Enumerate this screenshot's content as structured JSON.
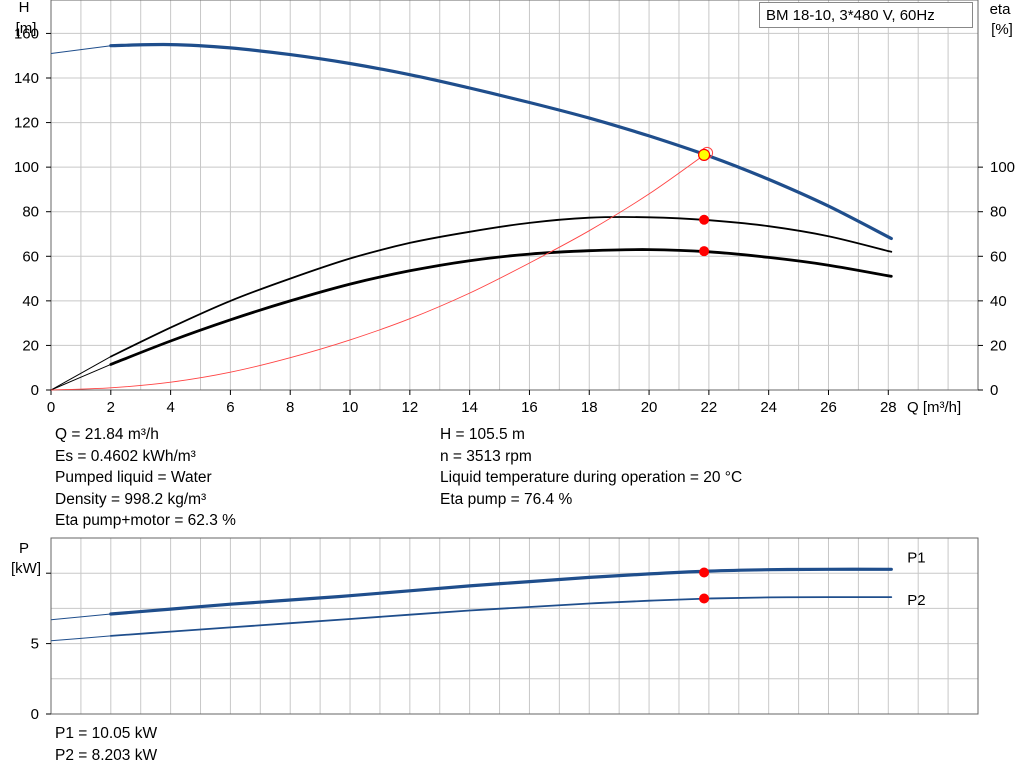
{
  "legend_title": "BM  18-10, 3*480 V, 60Hz",
  "colors": {
    "head": "#1f4e8c",
    "eff": "#000000",
    "es": "#ff4444",
    "point": "#ff0000",
    "dutyfill": "#ffff00",
    "grid": "#c8c8c8"
  },
  "chart_data": [
    {
      "type": "line",
      "title": "BM  18-10, 3*480 V, 60Hz",
      "xlabel": "Q [m³/h]",
      "ylabel_left_symbol": "H",
      "ylabel_left_unit": "[m]",
      "ylabel_right_symbol": "eta",
      "ylabel_right_unit": "[%]",
      "xlim": [
        0,
        31
      ],
      "ylim_left": [
        0,
        175
      ],
      "xticks": [
        "0",
        "2",
        "4",
        "6",
        "8",
        "10",
        "12",
        "14",
        "16",
        "18",
        "20",
        "22",
        "24",
        "26",
        "28"
      ],
      "yticks_left": [
        "0",
        "20",
        "40",
        "60",
        "80",
        "100",
        "120",
        "140",
        "160"
      ],
      "yticks_right": [
        "0",
        "20",
        "40",
        "60",
        "80",
        "100"
      ],
      "grid": true,
      "series": [
        {
          "key": "H",
          "x": [
            0,
            2,
            4,
            6,
            8,
            10,
            12,
            14,
            16,
            18,
            20,
            22,
            24,
            26,
            28.1
          ],
          "y": [
            151,
            154.5,
            155,
            153.5,
            150.5,
            146.5,
            141.5,
            135.5,
            129,
            122,
            114,
            105,
            94.5,
            82.5,
            68
          ]
        },
        {
          "key": "eta_pump",
          "x": [
            0,
            2,
            4,
            6,
            8,
            10,
            12,
            14,
            16,
            18,
            20,
            22,
            24,
            26,
            28.1
          ],
          "y": [
            0,
            15,
            28,
            40,
            50,
            59,
            66,
            71,
            75,
            77.3,
            77.5,
            76.2,
            73.5,
            69,
            62
          ]
        },
        {
          "key": "eta_total",
          "x": [
            0,
            2,
            4,
            6,
            8,
            10,
            12,
            14,
            16,
            18,
            20,
            22,
            24,
            26,
            28.1
          ],
          "y": [
            0,
            11.5,
            22,
            31.5,
            40,
            47.5,
            53.5,
            58,
            61,
            62.5,
            63,
            62,
            59.5,
            56,
            51
          ]
        },
        {
          "key": "Es",
          "x": [
            0,
            2,
            4,
            6,
            8,
            10,
            12,
            14,
            16,
            18,
            20,
            22
          ],
          "y": [
            0,
            1,
            3.5,
            8,
            14.5,
            22.5,
            32,
            43.5,
            57,
            71.5,
            88,
            107
          ]
        }
      ],
      "duty_point": {
        "Q": 21.84,
        "H": 105.5,
        "eta_pump": 76.4,
        "eta_total": 62.3
      }
    },
    {
      "type": "line",
      "ylabel_symbol": "P",
      "ylabel_unit": "[kW]",
      "xlim": [
        0,
        31
      ],
      "ylim": [
        0,
        12.5
      ],
      "yticks": [
        "0",
        "5"
      ],
      "grid": true,
      "series": [
        {
          "name": "P1",
          "x": [
            0,
            2,
            4,
            6,
            8,
            10,
            12,
            14,
            16,
            18,
            20,
            22,
            24,
            26,
            28.1
          ],
          "y": [
            6.7,
            7.1,
            7.45,
            7.8,
            8.1,
            8.4,
            8.75,
            9.1,
            9.4,
            9.7,
            9.95,
            10.15,
            10.25,
            10.28,
            10.28
          ]
        },
        {
          "name": "P2",
          "x": [
            0,
            2,
            4,
            6,
            8,
            10,
            12,
            14,
            16,
            18,
            20,
            22,
            24,
            26,
            28.1
          ],
          "y": [
            5.2,
            5.55,
            5.85,
            6.15,
            6.45,
            6.75,
            7.05,
            7.35,
            7.6,
            7.85,
            8.05,
            8.2,
            8.28,
            8.3,
            8.3
          ]
        }
      ],
      "duty_point": {
        "Q": 21.84,
        "P1": 10.05,
        "P2": 8.203
      }
    }
  ],
  "info_left": [
    "Q = 21.84 m³/h",
    "Es = 0.4602 kWh/m³",
    "Pumped liquid = Water",
    "Density = 998.2 kg/m³",
    "Eta pump+motor = 62.3 %"
  ],
  "info_right": [
    "H = 105.5 m",
    "n = 3513 rpm",
    "Liquid temperature during operation = 20 °C",
    "Eta pump = 76.4 %"
  ],
  "info_bottom": [
    "P1 = 10.05 kW",
    "P2 = 8.203 kW"
  ]
}
